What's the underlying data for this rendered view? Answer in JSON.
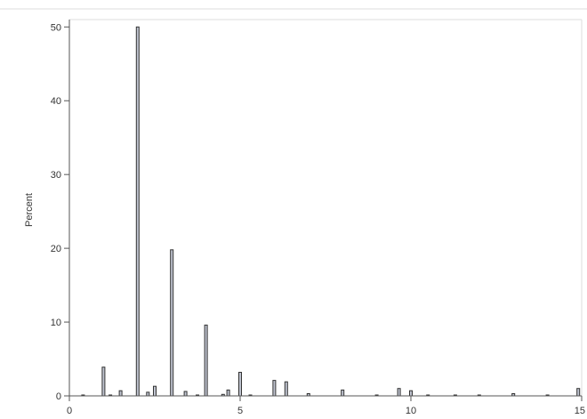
{
  "chart_data": {
    "type": "bar",
    "title": "",
    "xlabel": "",
    "ylabel": "Percent",
    "xlim": [
      0,
      15
    ],
    "ylim": [
      0,
      51
    ],
    "x_ticks": [
      0,
      5,
      10,
      15
    ],
    "y_ticks": [
      0,
      10,
      20,
      30,
      40,
      50
    ],
    "grid": false,
    "colors": {
      "bar_fill": "#bfc3cf",
      "bar_edge": "#333333",
      "axis": "#555555",
      "frame": "#dddddd"
    },
    "series": [
      {
        "x": [
          0.4,
          1.0,
          1.2,
          1.5,
          2.0,
          2.3,
          2.5,
          3.0,
          3.4,
          3.75,
          4.0,
          4.5,
          4.65,
          5.0,
          5.3,
          6.0,
          6.35,
          7.0,
          8.0,
          9.0,
          9.65,
          10.0,
          10.5,
          11.3,
          12.0,
          13.0,
          14.0,
          14.9
        ],
        "values": [
          0.1,
          3.9,
          0.1,
          0.7,
          50.0,
          0.5,
          1.3,
          19.8,
          0.6,
          0.1,
          9.6,
          0.2,
          0.8,
          3.2,
          0.1,
          2.1,
          1.9,
          0.3,
          0.8,
          0.1,
          1.0,
          0.7,
          0.1,
          0.1,
          0.1,
          0.3,
          0.1,
          1.0
        ]
      }
    ]
  }
}
